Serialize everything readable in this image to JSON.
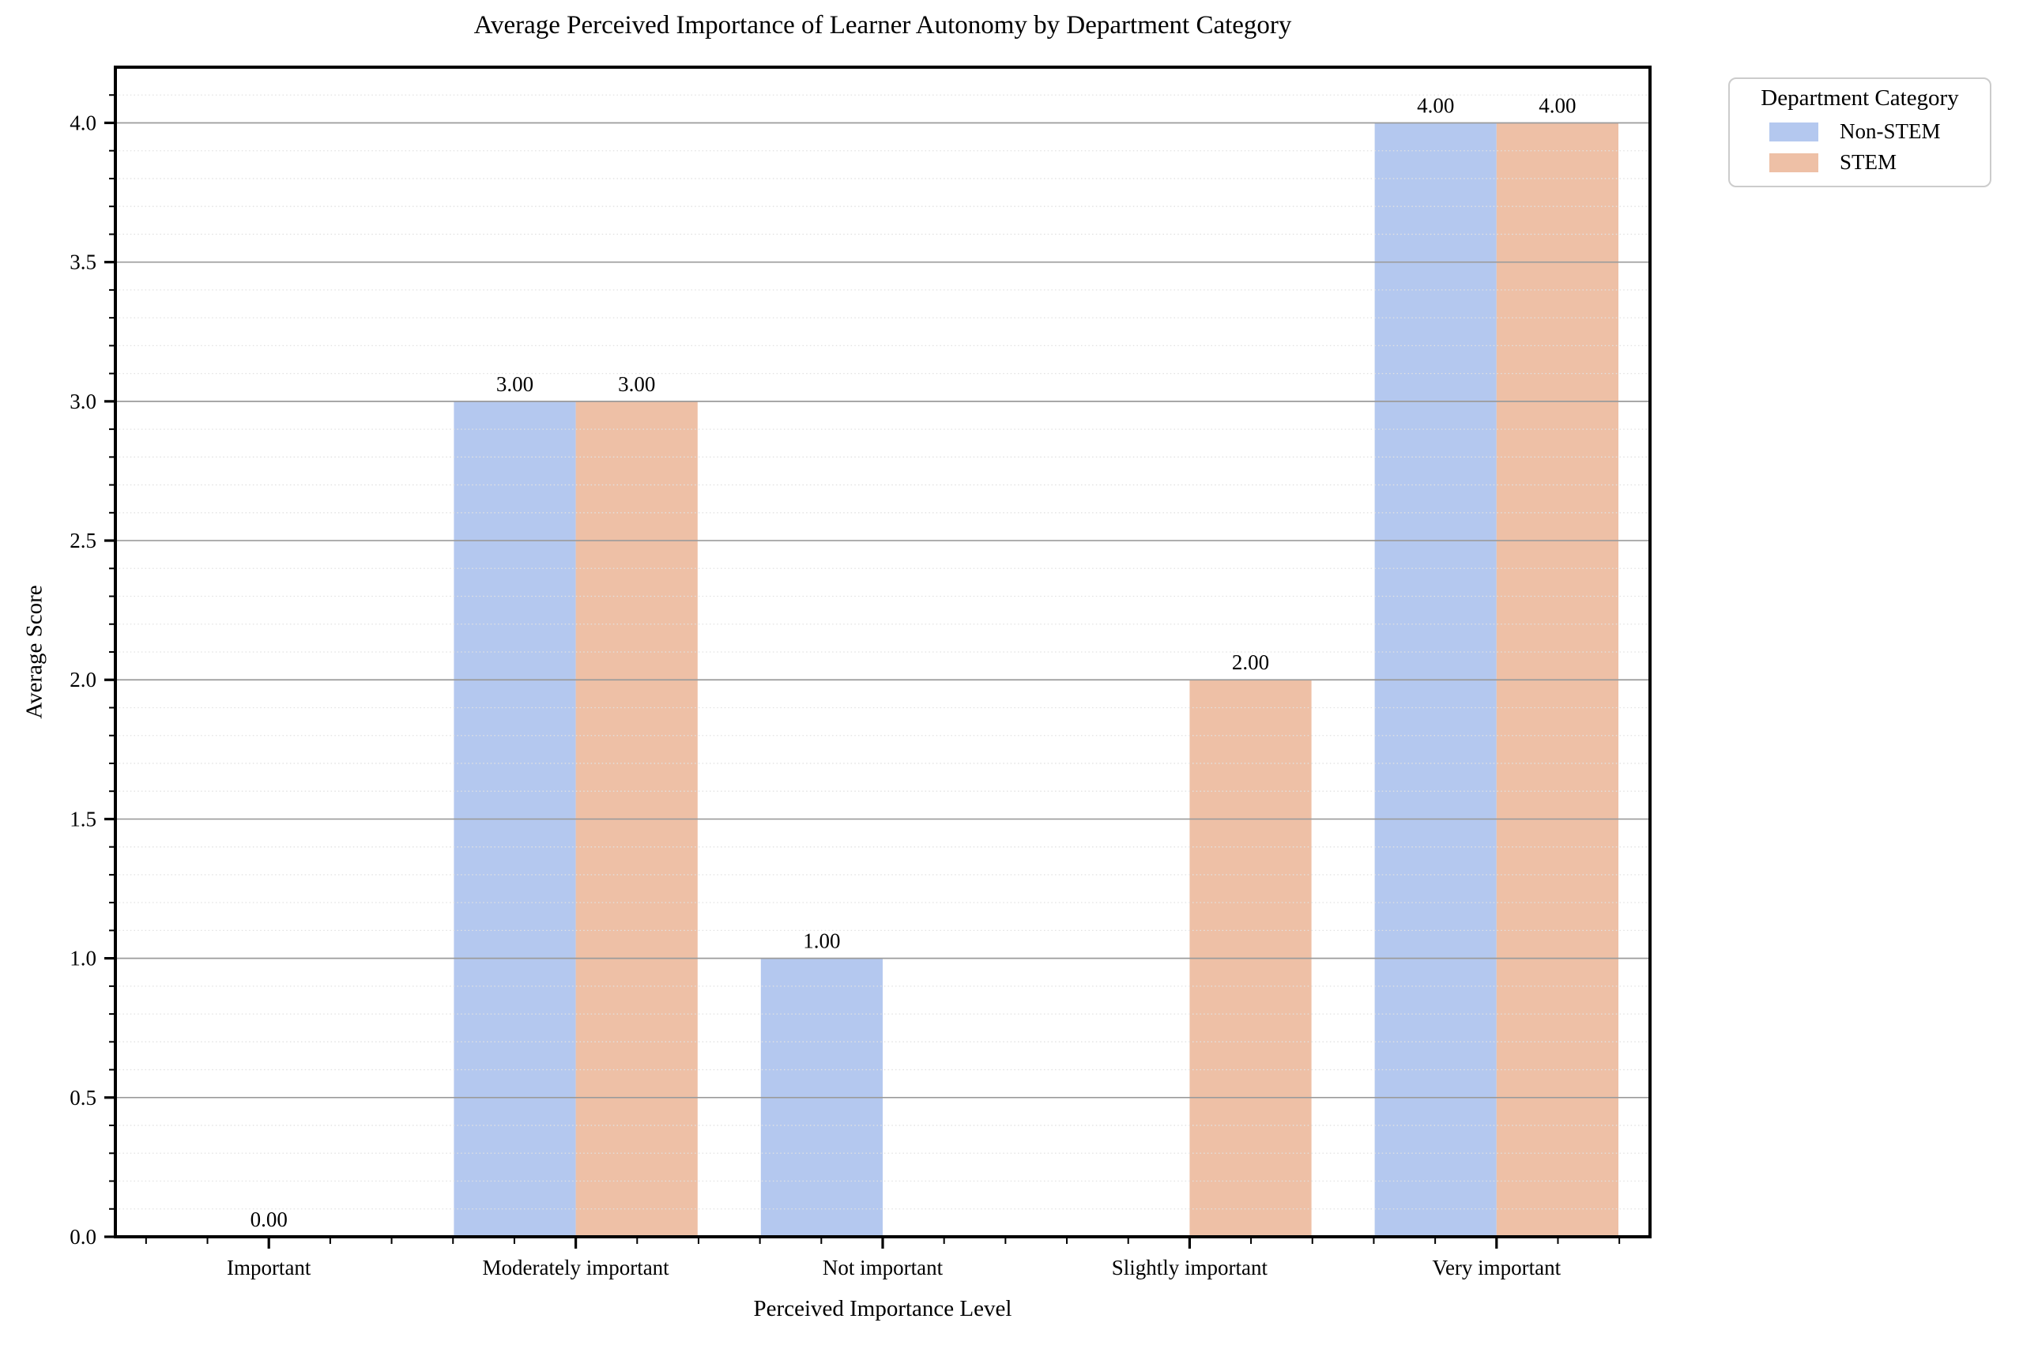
{
  "chart_data": {
    "type": "bar",
    "title": "Average Perceived Importance of Learner Autonomy by Department Category",
    "xlabel": "Perceived Importance Level",
    "ylabel": "Average Score",
    "categories": [
      "Important",
      "Moderately important",
      "Not important",
      "Slightly important",
      "Very important"
    ],
    "series": [
      {
        "name": "Non-STEM",
        "color": "#b4c8ef",
        "values": [
          0,
          3,
          1,
          null,
          4
        ]
      },
      {
        "name": "STEM",
        "color": "#eec0a6",
        "values": [
          null,
          3,
          null,
          2,
          4
        ]
      }
    ],
    "bar_value_labels": [
      "0.00",
      "3.00",
      "3.00",
      "1.00",
      "2.00",
      "4.00",
      "4.00"
    ],
    "bar_label_format_decimals": 2,
    "legend_title": "Department Category",
    "legend_position": "outside-upper-right",
    "ylim": [
      0,
      4.2
    ],
    "yticks": [
      0.0,
      0.5,
      1.0,
      1.5,
      2.0,
      2.5,
      3.0,
      3.5,
      4.0
    ],
    "ytick_labels": [
      "0.0",
      "0.5",
      "1.0",
      "1.5",
      "2.0",
      "2.5",
      "3.0",
      "3.5",
      "4.0"
    ],
    "ytick_minor_interval": 0.1,
    "xtick_minor_divisions": 5,
    "grid": {
      "major": true,
      "minor": true,
      "vertical": false,
      "drawn_over_bars": true
    },
    "colors": {
      "grid_major": "#9b9b9b",
      "grid_minor": "#e2e2e2",
      "spine": "#000000",
      "text": "#000000",
      "legend_border": "#cccccc",
      "background": "#ffffff"
    }
  }
}
